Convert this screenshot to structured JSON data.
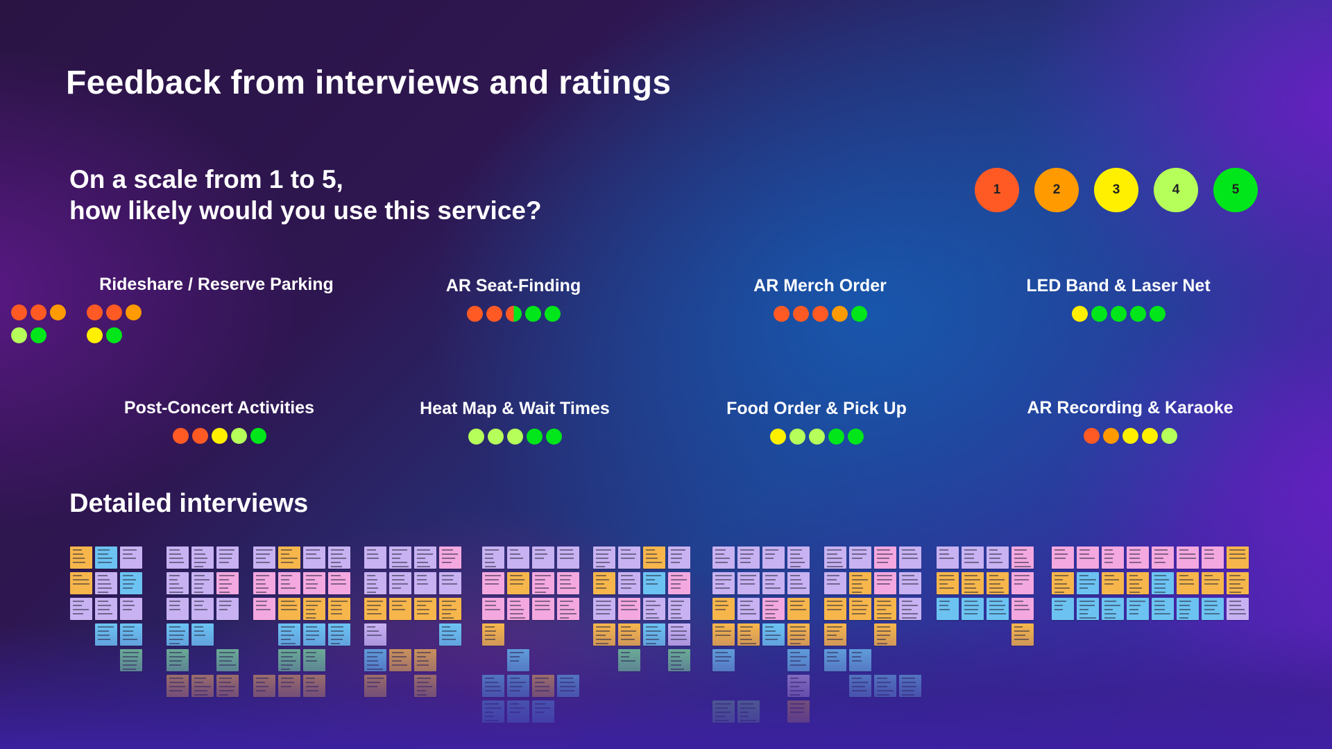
{
  "page": {
    "title": "Feedback from interviews and ratings",
    "question_line1": "On a scale from 1 to 5,",
    "question_line2": "how likely would you use this service?",
    "detail_heading": "Detailed interviews"
  },
  "colors": {
    "1": "#ff5a24",
    "2": "#ff9a00",
    "3": "#fff000",
    "4": "#b6ff5a",
    "5": "#00e61a"
  },
  "scale": [
    {
      "label": "1",
      "level": 1
    },
    {
      "label": "2",
      "level": 2
    },
    {
      "label": "3",
      "level": 3
    },
    {
      "label": "4",
      "level": 4
    },
    {
      "label": "5",
      "level": 5
    }
  ],
  "services": [
    {
      "name": "Rideshare / Reserve Parking",
      "ratings": [
        [
          1,
          1,
          2
        ],
        [
          1,
          1,
          2
        ],
        [
          4,
          5
        ],
        [
          3,
          5
        ]
      ],
      "layout": "grid"
    },
    {
      "name": "AR Seat-Finding",
      "ratings": [
        [
          1,
          1,
          "1/5",
          5,
          5
        ]
      ]
    },
    {
      "name": "AR Merch Order",
      "ratings": [
        [
          1,
          1,
          1,
          2,
          5
        ]
      ]
    },
    {
      "name": "LED Band & Laser Net",
      "ratings": [
        [
          3,
          5,
          5,
          5,
          5
        ]
      ]
    },
    {
      "name": "Post-Concert Activities",
      "ratings": [
        [
          1,
          1,
          3,
          4,
          5
        ]
      ]
    },
    {
      "name": "Heat Map & Wait Times",
      "ratings": [
        [
          4,
          4,
          4,
          5,
          5
        ]
      ]
    },
    {
      "name": "Food Order & Pick Up",
      "ratings": [
        [
          3,
          4,
          4,
          5,
          5
        ]
      ]
    },
    {
      "name": "AR Recording & Karaoke",
      "ratings": [
        [
          1,
          2,
          3,
          3,
          4
        ]
      ]
    }
  ],
  "note_colors": {
    "orange": "#f7b64c",
    "pink": "#f4a8e0",
    "lavender": "#c8b2f2",
    "blue": "#6cc3f2",
    "green": "#7bd69a"
  }
}
